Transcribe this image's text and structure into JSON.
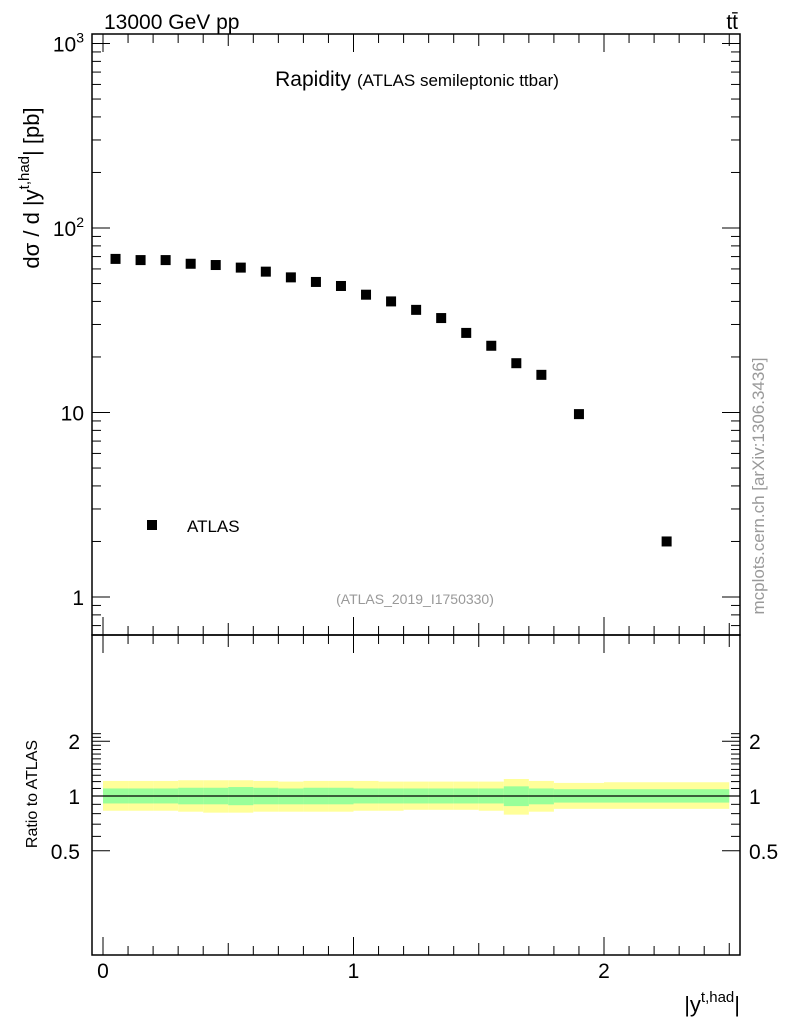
{
  "header": {
    "energy_label": "13000 GeV pp",
    "process_label": "tt̄"
  },
  "side_label": "mcplots.cern.ch [arXiv:1306.3436]",
  "analysis_id": "(ATLAS_2019_I1750330)",
  "chart_data": [
    {
      "type": "scatter",
      "title": "Rapidity",
      "subtitle": "(ATLAS semileptonic ttbar)",
      "xlabel": "|y",
      "xlabel_sup": "t,had",
      "xlabel_end": "|",
      "ylabel": "dσ / d |y",
      "ylabel_sup": "t,had",
      "ylabel_end": "| [pb]",
      "yscale": "log",
      "xlim": [
        -0.05,
        2.55
      ],
      "ylim": [
        0.65,
        1150
      ],
      "x_ticks": [
        "0",
        "1",
        "2"
      ],
      "y_ticks": [
        {
          "base": "10",
          "exp": "3"
        },
        {
          "base": "10",
          "exp": "2"
        },
        {
          "base": "10",
          "exp": ""
        },
        {
          "base": "1",
          "exp": ""
        }
      ],
      "legend": {
        "label": "ATLAS",
        "placement": "lower-left"
      },
      "color": "#000000",
      "series": [
        {
          "name": "ATLAS",
          "x": [
            0.05,
            0.15,
            0.25,
            0.35,
            0.45,
            0.55,
            0.65,
            0.75,
            0.85,
            0.95,
            1.05,
            1.15,
            1.25,
            1.35,
            1.45,
            1.55,
            1.65,
            1.75,
            1.9,
            2.25
          ],
          "values": [
            68.0,
            67.0,
            67.0,
            64.0,
            63.0,
            61.0,
            58.0,
            54.0,
            51.0,
            48.5,
            43.5,
            40.0,
            36.0,
            32.5,
            27.0,
            23.0,
            18.5,
            16.0,
            9.8,
            2.0
          ]
        }
      ]
    },
    {
      "type": "area",
      "ylabel": "Ratio to ATLAS",
      "ylim": [
        0.42,
        2.35
      ],
      "y_ticks": [
        "2",
        "1",
        "0.5"
      ],
      "reference_line": 1.0,
      "colors": {
        "outer": "#ffff99",
        "inner": "#99ff99"
      },
      "bins": [
        {
          "lo": 0.0,
          "hi": 0.1,
          "outer": [
            0.83,
            1.21
          ],
          "inner": [
            0.91,
            1.1
          ]
        },
        {
          "lo": 0.1,
          "hi": 0.2,
          "outer": [
            0.83,
            1.21
          ],
          "inner": [
            0.91,
            1.1
          ]
        },
        {
          "lo": 0.2,
          "hi": 0.3,
          "outer": [
            0.83,
            1.21
          ],
          "inner": [
            0.91,
            1.1
          ]
        },
        {
          "lo": 0.3,
          "hi": 0.4,
          "outer": [
            0.82,
            1.22
          ],
          "inner": [
            0.9,
            1.11
          ]
        },
        {
          "lo": 0.4,
          "hi": 0.5,
          "outer": [
            0.81,
            1.22
          ],
          "inner": [
            0.9,
            1.11
          ]
        },
        {
          "lo": 0.5,
          "hi": 0.6,
          "outer": [
            0.81,
            1.22
          ],
          "inner": [
            0.89,
            1.12
          ]
        },
        {
          "lo": 0.6,
          "hi": 0.7,
          "outer": [
            0.82,
            1.21
          ],
          "inner": [
            0.9,
            1.11
          ]
        },
        {
          "lo": 0.7,
          "hi": 0.8,
          "outer": [
            0.82,
            1.2
          ],
          "inner": [
            0.9,
            1.1
          ]
        },
        {
          "lo": 0.8,
          "hi": 0.9,
          "outer": [
            0.82,
            1.21
          ],
          "inner": [
            0.9,
            1.11
          ]
        },
        {
          "lo": 0.9,
          "hi": 1.0,
          "outer": [
            0.82,
            1.21
          ],
          "inner": [
            0.9,
            1.11
          ]
        },
        {
          "lo": 1.0,
          "hi": 1.1,
          "outer": [
            0.83,
            1.21
          ],
          "inner": [
            0.91,
            1.1
          ]
        },
        {
          "lo": 1.1,
          "hi": 1.2,
          "outer": [
            0.83,
            1.2
          ],
          "inner": [
            0.91,
            1.1
          ]
        },
        {
          "lo": 1.2,
          "hi": 1.3,
          "outer": [
            0.84,
            1.2
          ],
          "inner": [
            0.91,
            1.1
          ]
        },
        {
          "lo": 1.3,
          "hi": 1.4,
          "outer": [
            0.84,
            1.2
          ],
          "inner": [
            0.91,
            1.1
          ]
        },
        {
          "lo": 1.4,
          "hi": 1.5,
          "outer": [
            0.84,
            1.2
          ],
          "inner": [
            0.91,
            1.1
          ]
        },
        {
          "lo": 1.5,
          "hi": 1.6,
          "outer": [
            0.83,
            1.2
          ],
          "inner": [
            0.91,
            1.1
          ]
        },
        {
          "lo": 1.6,
          "hi": 1.7,
          "outer": [
            0.79,
            1.24
          ],
          "inner": [
            0.88,
            1.13
          ]
        },
        {
          "lo": 1.7,
          "hi": 1.8,
          "outer": [
            0.82,
            1.21
          ],
          "inner": [
            0.9,
            1.1
          ]
        },
        {
          "lo": 1.8,
          "hi": 2.0,
          "outer": [
            0.85,
            1.18
          ],
          "inner": [
            0.92,
            1.09
          ]
        },
        {
          "lo": 2.0,
          "hi": 2.5,
          "outer": [
            0.85,
            1.19
          ],
          "inner": [
            0.92,
            1.09
          ]
        }
      ]
    }
  ]
}
